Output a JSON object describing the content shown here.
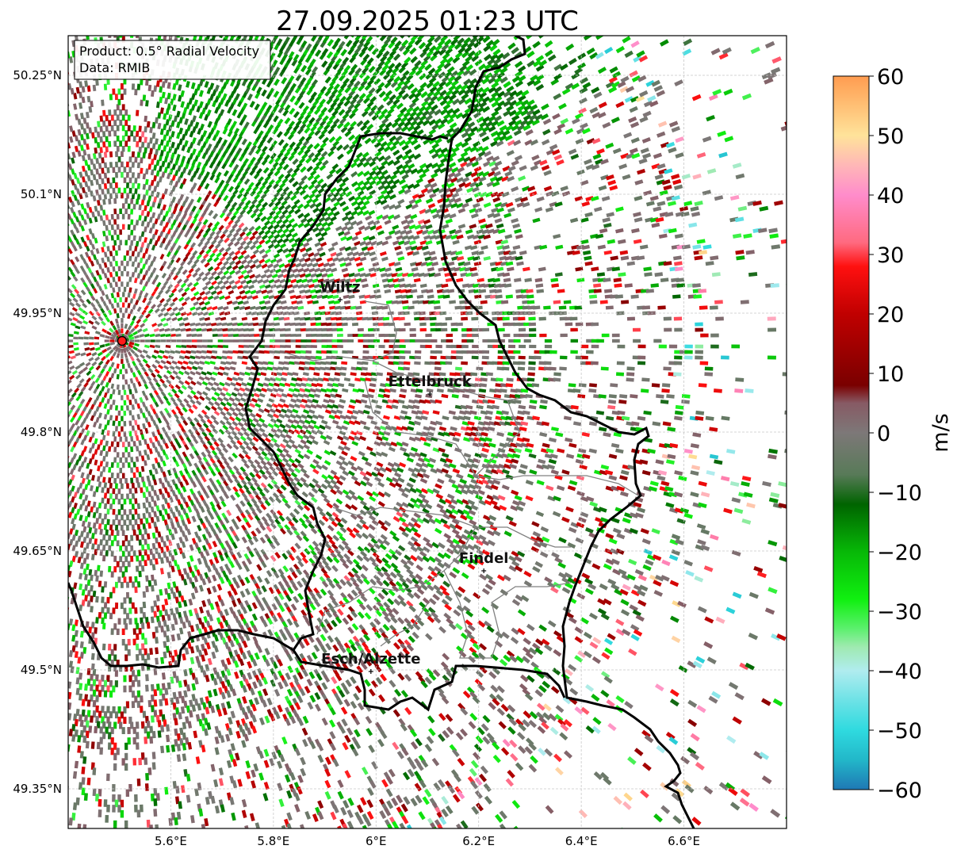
{
  "title": "27.09.2025 01:23 UTC",
  "info_box": {
    "product": "Product: 0.5° Radial Velocity",
    "source": "Data: RMIB"
  },
  "lat_ticks": [
    {
      "value": 50.25,
      "label": "50.25°N"
    },
    {
      "value": 50.1,
      "label": "50.1°N"
    },
    {
      "value": 49.95,
      "label": "49.95°N"
    },
    {
      "value": 49.8,
      "label": "49.8°N"
    },
    {
      "value": 49.65,
      "label": "49.65°N"
    },
    {
      "value": 49.5,
      "label": "49.5°N"
    },
    {
      "value": 49.35,
      "label": "49.35°N"
    }
  ],
  "lon_ticks": [
    {
      "value": 5.6,
      "label": "5.6°E"
    },
    {
      "value": 5.8,
      "label": "5.8°E"
    },
    {
      "value": 6.0,
      "label": "6°E"
    },
    {
      "value": 6.2,
      "label": "6.2°E"
    },
    {
      "value": 6.4,
      "label": "6.4°E"
    },
    {
      "value": 6.6,
      "label": "6.6°E"
    }
  ],
  "extent": {
    "lon_min": 5.4,
    "lon_max": 6.8,
    "lat_min": 49.3,
    "lat_max": 50.3
  },
  "radar_site": {
    "lon": 5.505,
    "lat": 49.915
  },
  "cities": [
    {
      "name": "Wiltz",
      "lon": 5.93,
      "lat": 49.967
    },
    {
      "name": "Ettelbruck",
      "lon": 6.105,
      "lat": 49.848
    },
    {
      "name": "Findel",
      "lon": 6.21,
      "lat": 49.625
    },
    {
      "name": "Esch/Alzette",
      "lon": 5.99,
      "lat": 49.498
    }
  ],
  "colorbar": {
    "label": "m/s",
    "min": -60,
    "max": 60,
    "ticks": [
      {
        "value": 60,
        "label": "60"
      },
      {
        "value": 50,
        "label": "50"
      },
      {
        "value": 40,
        "label": "40"
      },
      {
        "value": 30,
        "label": "30"
      },
      {
        "value": 20,
        "label": "20"
      },
      {
        "value": 10,
        "label": "10"
      },
      {
        "value": 0,
        "label": "0"
      },
      {
        "value": -10,
        "label": "−10"
      },
      {
        "value": -20,
        "label": "−20"
      },
      {
        "value": -30,
        "label": "−30"
      },
      {
        "value": -40,
        "label": "−40"
      },
      {
        "value": -50,
        "label": "−50"
      },
      {
        "value": -60,
        "label": "−60"
      }
    ],
    "stops": [
      {
        "v": -60,
        "color": "#1f78b4"
      },
      {
        "v": -55,
        "color": "#22b7c9"
      },
      {
        "v": -50,
        "color": "#2fdadf"
      },
      {
        "v": -45,
        "color": "#6de2e6"
      },
      {
        "v": -40,
        "color": "#b0ecef"
      },
      {
        "v": -36,
        "color": "#9feab0"
      },
      {
        "v": -33,
        "color": "#5df06f"
      },
      {
        "v": -28,
        "color": "#10f010"
      },
      {
        "v": -20,
        "color": "#07b807"
      },
      {
        "v": -12,
        "color": "#006400"
      },
      {
        "v": -7,
        "color": "#587a58"
      },
      {
        "v": 0,
        "color": "#7d7878"
      },
      {
        "v": 5,
        "color": "#875a64"
      },
      {
        "v": 8,
        "color": "#7a0000"
      },
      {
        "v": 20,
        "color": "#c00000"
      },
      {
        "v": 28,
        "color": "#ff1010"
      },
      {
        "v": 32,
        "color": "#ff6a80"
      },
      {
        "v": 40,
        "color": "#ff8ccb"
      },
      {
        "v": 45,
        "color": "#ffb7b7"
      },
      {
        "v": 50,
        "color": "#ffe39a"
      },
      {
        "v": 60,
        "color": "#ff9c50"
      }
    ]
  },
  "colors": {
    "border": "#000000",
    "district": "#808080",
    "grid": "#c8c8c8",
    "radar_marker": "#ff1a1a"
  }
}
